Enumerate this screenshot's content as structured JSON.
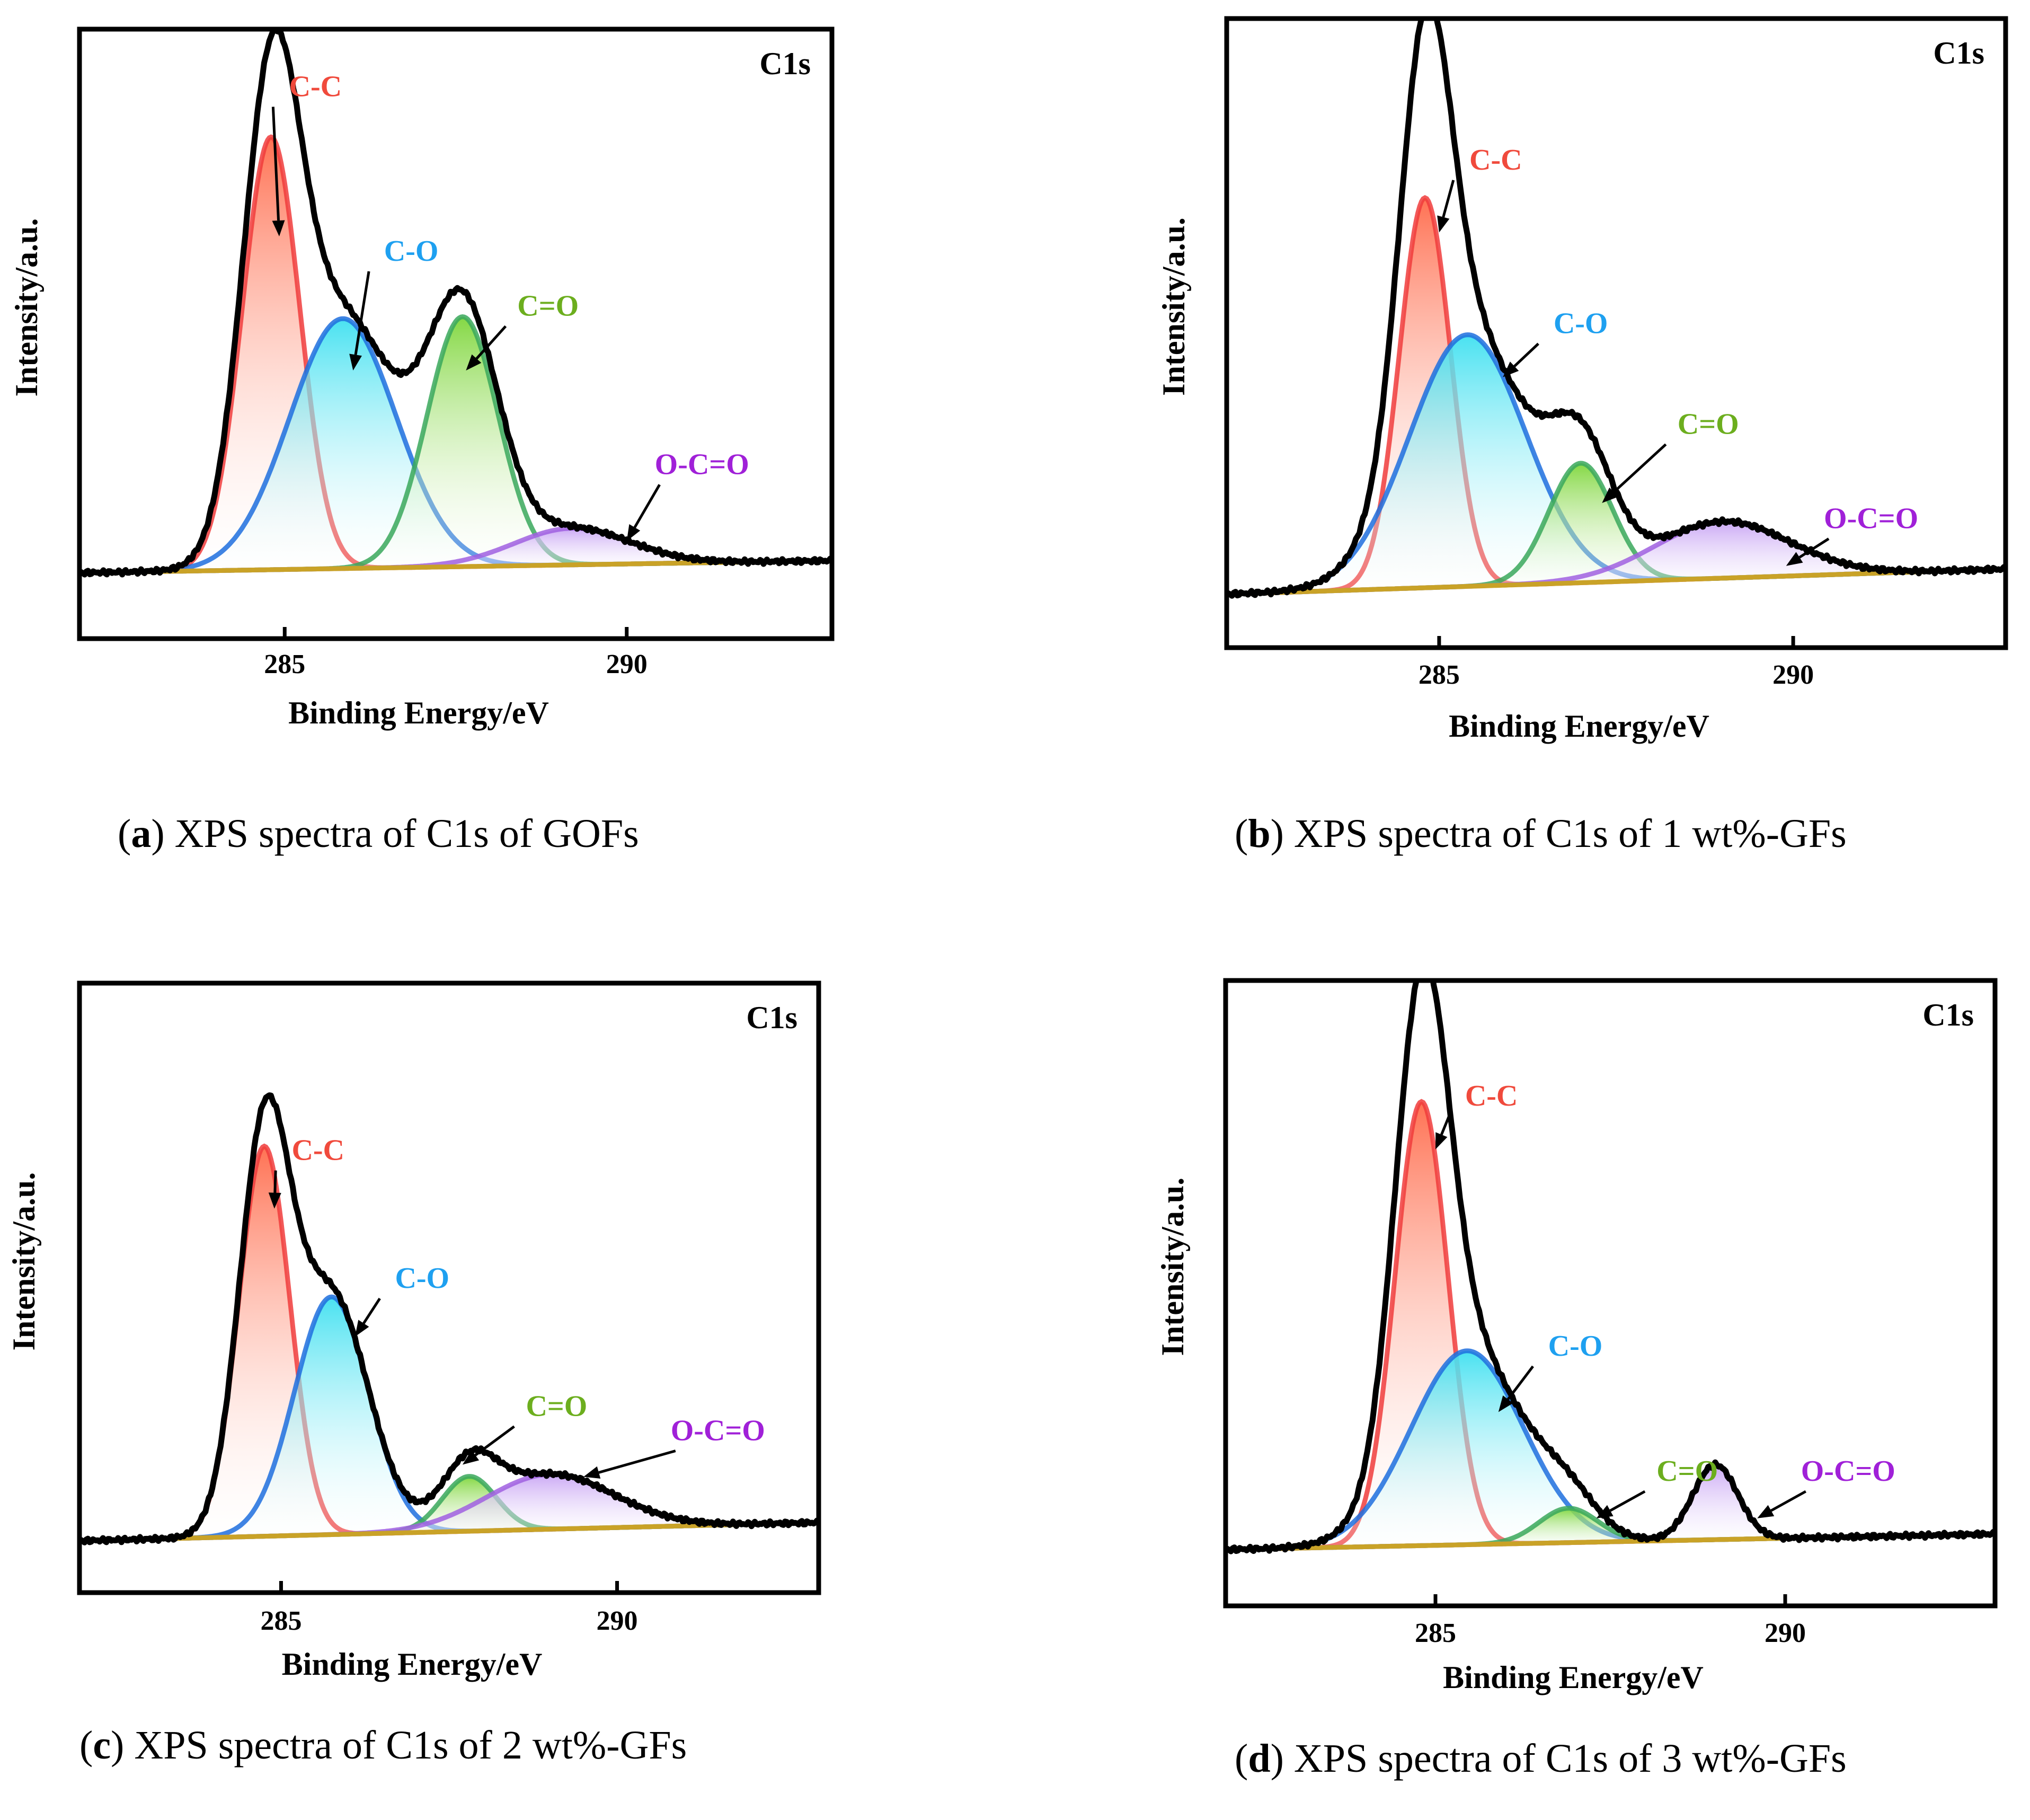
{
  "panels": [
    {
      "id": "a",
      "caption": {
        "letter": "a",
        "text": " XPS spectra of C1s of GOFs"
      },
      "chart_data": {
        "type": "line",
        "title": "C1s",
        "xlabel": "Binding Energy/eV",
        "ylabel": "Intensity/a.u.",
        "xlim": [
          282.0,
          293.0
        ],
        "ylim": [
          0,
          1.0
        ],
        "xticks": [
          285,
          290
        ],
        "xtick_labels": [
          "285",
          "290"
        ],
        "baseline": {
          "start": 0.108,
          "end": 0.128
        },
        "series": [
          {
            "name": "C-C",
            "label": "C-C",
            "center": 284.8,
            "height": 0.71,
            "width": 0.42,
            "color": "#f03c3c",
            "label_at": [
              285.45,
              0.89
            ],
            "arrow_to": [
              284.92,
              0.66
            ]
          },
          {
            "name": "C-O",
            "label": "C-O",
            "center": 285.85,
            "height": 0.41,
            "width": 0.78,
            "color": "#1e6fde",
            "fill": "#3fe0f0",
            "label_at": [
              286.85,
              0.62
            ],
            "arrow_to": [
              286.0,
              0.44
            ]
          },
          {
            "name": "C=O",
            "label": "C=O",
            "center": 287.6,
            "height": 0.41,
            "width": 0.52,
            "color": "#3aa85c",
            "fill": "#7ed63a",
            "label_at": [
              288.85,
              0.53
            ],
            "arrow_to": [
              287.65,
              0.44
            ]
          },
          {
            "name": "O-C=O",
            "label": "O-C=O",
            "center": 289.2,
            "height": 0.06,
            "width": 0.85,
            "color": "#a060e0",
            "fill": "#c8a4f4",
            "label_at": [
              291.1,
              0.27
            ],
            "arrow_to": [
              290.0,
              0.16
            ]
          }
        ],
        "envelope": {
          "color": "#000000",
          "noise": 0.004
        }
      }
    },
    {
      "id": "b",
      "caption": {
        "letter": "b",
        "text": " XPS spectra of C1s of 1 wt%-GFs"
      },
      "chart_data": {
        "type": "line",
        "title": "C1s",
        "xlabel": "Binding Energy/eV",
        "ylabel": "Intensity/a.u.",
        "xlim": [
          282.0,
          293.0
        ],
        "ylim": [
          0,
          1.0
        ],
        "xticks": [
          285,
          290
        ],
        "xtick_labels": [
          "285",
          "290"
        ],
        "baseline": {
          "start": 0.085,
          "end": 0.125
        },
        "series": [
          {
            "name": "C-C",
            "label": "C-C",
            "center": 284.8,
            "height": 0.62,
            "width": 0.36,
            "color": "#f03c3c",
            "label_at": [
              285.8,
              0.76
            ],
            "arrow_to": [
              285.0,
              0.66
            ]
          },
          {
            "name": "C-O",
            "label": "C-O",
            "center": 285.4,
            "height": 0.4,
            "width": 0.82,
            "color": "#1e6fde",
            "fill": "#3fe0f0",
            "label_at": [
              287.0,
              0.5
            ],
            "arrow_to": [
              285.9,
              0.43
            ]
          },
          {
            "name": "C=O",
            "label": "C=O",
            "center": 287.0,
            "height": 0.19,
            "width": 0.45,
            "color": "#3aa85c",
            "fill": "#7ed63a",
            "label_at": [
              288.8,
              0.34
            ],
            "arrow_to": [
              287.3,
              0.23
            ]
          },
          {
            "name": "O-C=O",
            "label": "O-C=O",
            "center": 289.0,
            "height": 0.09,
            "width": 0.95,
            "color": "#a060e0",
            "fill": "#c8a4f4",
            "label_at": [
              291.1,
              0.19
            ],
            "arrow_to": [
              289.9,
              0.13
            ]
          }
        ],
        "envelope": {
          "color": "#000000",
          "noise": 0.004
        }
      }
    },
    {
      "id": "c",
      "caption": {
        "letter": "c",
        "text": " XPS spectra of C1s of 2 wt%-GFs"
      },
      "chart_data": {
        "type": "line",
        "title": "C1s",
        "xlabel": "Binding Energy/eV",
        "ylabel": "Intensity/a.u.",
        "xlim": [
          282.0,
          293.0
        ],
        "ylim": [
          0,
          1.0
        ],
        "xticks": [
          285,
          290
        ],
        "xtick_labels": [
          "285",
          "290"
        ],
        "baseline": {
          "start": 0.085,
          "end": 0.115
        },
        "series": [
          {
            "name": "C-C",
            "label": "C-C",
            "center": 284.75,
            "height": 0.64,
            "width": 0.38,
            "color": "#f03c3c",
            "label_at": [
              285.55,
              0.71
            ],
            "arrow_to": [
              284.9,
              0.63
            ]
          },
          {
            "name": "C-O",
            "label": "C-O",
            "center": 285.75,
            "height": 0.39,
            "width": 0.55,
            "color": "#1e6fde",
            "fill": "#3fe0f0",
            "label_at": [
              287.1,
              0.5
            ],
            "arrow_to": [
              286.1,
              0.42
            ]
          },
          {
            "name": "C=O",
            "label": "C=O",
            "center": 287.8,
            "height": 0.09,
            "width": 0.4,
            "color": "#3aa85c",
            "fill": "#7ed63a",
            "label_at": [
              289.1,
              0.29
            ],
            "arrow_to": [
              287.7,
              0.21
            ]
          },
          {
            "name": "O-C=O",
            "label": "O-C=O",
            "center": 289.0,
            "height": 0.09,
            "width": 0.95,
            "color": "#a060e0",
            "fill": "#c8a4f4",
            "label_at": [
              291.5,
              0.25
            ],
            "arrow_to": [
              289.5,
              0.19
            ]
          }
        ],
        "envelope": {
          "color": "#000000",
          "noise": 0.004
        }
      }
    },
    {
      "id": "d",
      "caption": {
        "letter": "d",
        "text": " XPS spectra of C1s of 3 wt%-GFs"
      },
      "chart_data": {
        "type": "line",
        "title": "C1s",
        "xlabel": "Binding Energy/eV",
        "ylabel": "Intensity/a.u.",
        "xlim": [
          282.0,
          293.0
        ],
        "ylim": [
          0,
          1.0
        ],
        "xticks": [
          285,
          290
        ],
        "xtick_labels": [
          "285",
          "290"
        ],
        "baseline": {
          "start": 0.09,
          "end": 0.115
        },
        "series": [
          {
            "name": "C-C",
            "label": "C-C",
            "center": 284.8,
            "height": 0.71,
            "width": 0.38,
            "color": "#f03c3c",
            "label_at": [
              285.8,
              0.8
            ],
            "arrow_to": [
              285.0,
              0.73
            ]
          },
          {
            "name": "C-O",
            "label": "C-O",
            "center": 285.45,
            "height": 0.31,
            "width": 0.8,
            "color": "#1e6fde",
            "fill": "#3fe0f0",
            "label_at": [
              287.0,
              0.4
            ],
            "arrow_to": [
              285.9,
              0.31
            ]
          },
          {
            "name": "C=O",
            "label": "C=O",
            "center": 286.9,
            "height": 0.055,
            "width": 0.42,
            "color": "#3aa85c",
            "fill": "#7ed63a",
            "label_at": [
              288.6,
              0.2
            ],
            "arrow_to": [
              287.3,
              0.14
            ]
          },
          {
            "name": "O-C=O",
            "label": "O-C=O",
            "center": 289.0,
            "height": 0.12,
            "width": 0.32,
            "color": "#a060e0",
            "fill": "#c8a4f4",
            "label_at": [
              290.9,
              0.2
            ],
            "arrow_to": [
              289.6,
              0.14
            ]
          }
        ],
        "envelope": {
          "color": "#000000",
          "noise": 0.004
        }
      }
    }
  ]
}
